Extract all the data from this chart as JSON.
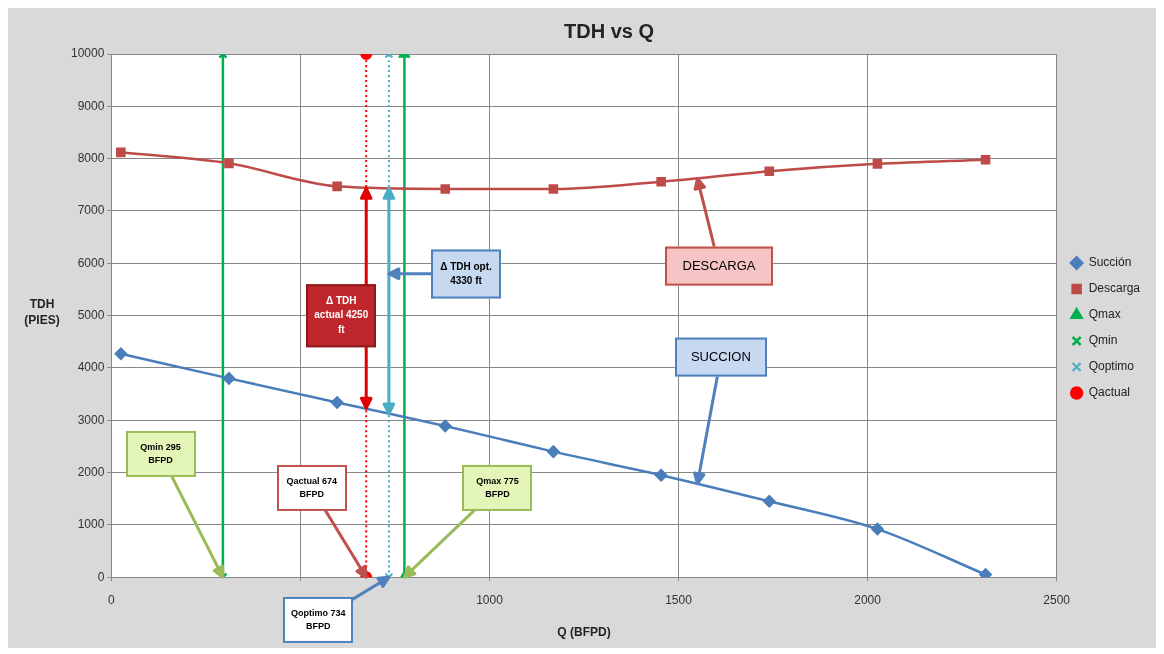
{
  "chart_data": {
    "type": "line",
    "title": "TDH vs Q",
    "xlabel": "Q (BFPD)",
    "ylabel": "TDH (PIES)",
    "xlim": [
      0,
      2500
    ],
    "xticks": [
      0,
      {
        "value": 500,
        "label": null
      },
      1000,
      1500,
      2000,
      2500
    ],
    "ylim": [
      0,
      10000
    ],
    "yticks": [
      0,
      1000,
      2000,
      3000,
      4000,
      5000,
      6000,
      7000,
      8000,
      9000,
      10000
    ],
    "grid": true,
    "legend": "right",
    "series": [
      {
        "name": "Succión",
        "color": "#4a7ebb",
        "marker": "diamond",
        "line_style": "solid",
        "x": [
          25,
          311,
          597,
          883,
          1169,
          1454,
          1740,
          2026,
          2312
        ],
        "values": [
          4270,
          3800,
          3340,
          2890,
          2400,
          1950,
          1450,
          920,
          50
        ]
      },
      {
        "name": "Descarga",
        "color": "#be4b48",
        "marker": "square",
        "line_style": "solid",
        "x": [
          25,
          311,
          597,
          883,
          1169,
          1454,
          1740,
          2026,
          2312
        ],
        "values": [
          8120,
          7910,
          7470,
          7420,
          7420,
          7560,
          7760,
          7900,
          7980
        ]
      },
      {
        "name": "Qmax",
        "color": "#00b050",
        "marker": "triangle",
        "line_style": "solid",
        "x": [
          775,
          775
        ],
        "values": [
          0,
          10000
        ]
      },
      {
        "name": "Qmin",
        "color": "#00b050",
        "marker": "cross",
        "line_style": "solid",
        "x": [
          295,
          295
        ],
        "values": [
          0,
          10000
        ]
      },
      {
        "name": "Qoptimo",
        "color": "#4bacc6",
        "marker": "cross",
        "line_style": "dotted",
        "x": [
          734,
          734
        ],
        "values": [
          0,
          10000
        ]
      },
      {
        "name": "Qactual",
        "color": "#ff0000",
        "marker": "circle",
        "line_style": "dotted",
        "x": [
          674,
          674
        ],
        "values": [
          0,
          10000
        ]
      }
    ],
    "annotations": [
      "Δ TDH actual 4250 ft",
      {
        "text": "Δ TDH opt. 4330 ft",
        "x": 734,
        "y": 5800
      },
      {
        "text": "DESCARGA",
        "x": 1550,
        "y": 7620
      },
      {
        "text": "SUCCION",
        "x": 1550,
        "y": 1790
      },
      {
        "text": "Qmin 295 BFPD",
        "x": 295,
        "y": 0
      },
      {
        "text": "Qactual 674 BFPD",
        "x": 674,
        "y": 0
      },
      {
        "text": "Qmax 775 BFPD",
        "x": 775,
        "y": 0
      },
      {
        "text": "Qoptimo 734 BFPD",
        "x": 734,
        "y": 0
      }
    ]
  }
}
